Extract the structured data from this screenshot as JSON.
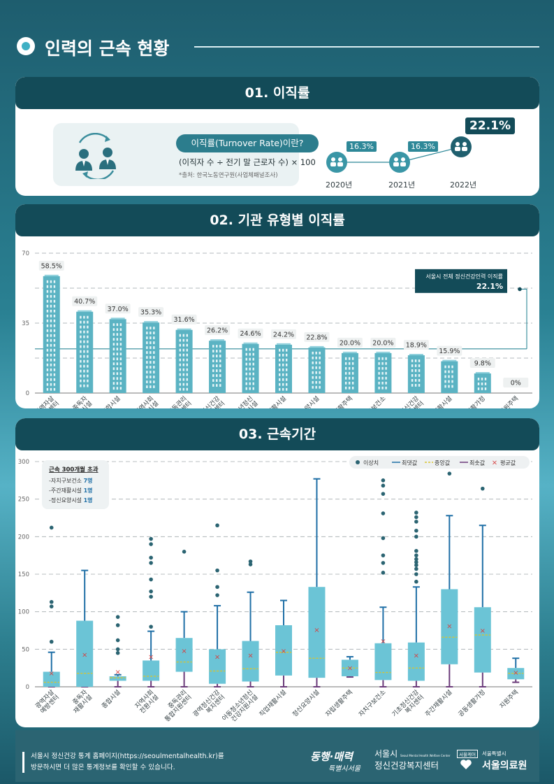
{
  "page": {
    "title": "인력의 근속 현황"
  },
  "section1": {
    "title": "01. 이직률",
    "definition": {
      "heading": "이직률(Turnover Rate)이란?",
      "formula": "(이직자 수 ÷ 전기 말 근로자 수) × 100",
      "source": "*출처: 한국노동연구원(사업체패널조사)"
    },
    "years": [
      {
        "label": "2020년",
        "value": "16.3%"
      },
      {
        "label": "2021년",
        "value": "16.3%"
      },
      {
        "label": "2022년",
        "value": "22.1%"
      }
    ]
  },
  "section2": {
    "title": "02. 기관 유형별 이직률",
    "callout_label": "서울시 전체 정신건강인력 이직률",
    "callout_value": "22.1%"
  },
  "section3": {
    "title": "03. 근속기간"
  },
  "chart_data": [
    {
      "type": "bar",
      "categories": [
        "광역자살예방센터",
        "중독자재활시설",
        "종합시설",
        "지역사회전환시설",
        "중독관리통합지원센터",
        "광역정신건강복지센터",
        "아동청소년정신건강지원시설",
        "직업재활시설",
        "정신요양시설",
        "자립생활주택",
        "자치구보건소",
        "기초정신건강복지센터",
        "주간재활시설",
        "공동생활가정",
        "지원주택"
      ],
      "values": [
        58.5,
        40.7,
        37.0,
        35.3,
        31.6,
        26.2,
        24.6,
        24.2,
        22.8,
        20.0,
        20.0,
        18.9,
        15.9,
        9.8,
        0
      ],
      "value_labels": [
        "58.5%",
        "40.7%",
        "37.0%",
        "35.3%",
        "31.6%",
        "26.2%",
        "24.6%",
        "24.2%",
        "22.8%",
        "20.0%",
        "20.0%",
        "18.9%",
        "15.9%",
        "9.8%",
        "0%"
      ],
      "cat_lines": [
        [
          "광역자살",
          "예방센터"
        ],
        [
          "중독자",
          "재활시설"
        ],
        [
          "종합시설"
        ],
        [
          "지역사회",
          "전환시설"
        ],
        [
          "중독관리",
          "통합지원센터"
        ],
        [
          "광역정신건강",
          "복지센터"
        ],
        [
          "아동청소년정신",
          "건강지원시설"
        ],
        [
          "직업재활시설"
        ],
        [
          "정신요양시설"
        ],
        [
          "자립생활주택"
        ],
        [
          "자치구보건소"
        ],
        [
          "기초정신건강",
          "복지센터"
        ],
        [
          "주간재활시설"
        ],
        [
          "공동생활가정"
        ],
        [
          "지원주택"
        ]
      ],
      "ylim": [
        0,
        70
      ],
      "yticks": [
        0,
        35,
        70
      ],
      "reference_line": 22.1,
      "grid": true
    },
    {
      "type": "box",
      "categories": [
        "광역자살예방센터",
        "중독자재활시설",
        "종합시설",
        "지역사회전환시설",
        "중독관리통합지원센터",
        "광역정신건강복지센터",
        "아동청소년정신건강지원시설",
        "직업재활시설",
        "정신요양시설",
        "자립생활주택",
        "자치구보건소",
        "기초정신건강복지센터",
        "주간재활시설",
        "공동생활가정",
        "지원주택"
      ],
      "cat_lines": [
        [
          "광역자살",
          "예방센터"
        ],
        [
          "중독자",
          "재활시설"
        ],
        [
          "종합시설"
        ],
        [
          "지역사회",
          "전환시설"
        ],
        [
          "중독관리",
          "통합지원센터"
        ],
        [
          "광역정신건강",
          "복지센터"
        ],
        [
          "아동청소년정신",
          "건강지원시설"
        ],
        [
          "직업재활시설"
        ],
        [
          "정신요양시설"
        ],
        [
          "자립생활주택"
        ],
        [
          "자치구보건소"
        ],
        [
          "기초정신건강",
          "복지센터"
        ],
        [
          "주간재활시설"
        ],
        [
          "공동생활가정"
        ],
        [
          "지원주택"
        ]
      ],
      "legend": [
        "이상치",
        "최댓값",
        "중앙값",
        "최솟값",
        "평균값"
      ],
      "ylim": [
        0,
        300
      ],
      "yticks": [
        0,
        50,
        100,
        150,
        200,
        250,
        300
      ],
      "boxes": [
        {
          "min": 0,
          "q1": 0,
          "median": 6,
          "q3": 20,
          "max": 46,
          "mean": 18,
          "outliers": [
            60,
            107,
            113,
            212
          ]
        },
        {
          "min": 0,
          "q1": 0,
          "median": 18,
          "q3": 88,
          "max": 155,
          "mean": 43,
          "outliers": []
        },
        {
          "min": 0,
          "q1": 8,
          "median": 12,
          "q3": 14,
          "max": 16,
          "mean": 20,
          "outliers": [
            45,
            50,
            62,
            82,
            93
          ]
        },
        {
          "min": 0,
          "q1": 8,
          "median": 14,
          "q3": 35,
          "max": 74,
          "mean": 40,
          "outliers": [
            80,
            120,
            127,
            143,
            165,
            172,
            190,
            197
          ]
        },
        {
          "min": 0,
          "q1": 20,
          "median": 33,
          "q3": 65,
          "max": 100,
          "mean": 48,
          "outliers": [
            180
          ]
        },
        {
          "min": 0,
          "q1": 4,
          "median": 21,
          "q3": 50,
          "max": 108,
          "mean": 40,
          "outliers": [
            122,
            133,
            155,
            215
          ]
        },
        {
          "min": 0,
          "q1": 7,
          "median": 24,
          "q3": 61,
          "max": 126,
          "mean": 42,
          "outliers": [
            163,
            167
          ]
        },
        {
          "min": 0,
          "q1": 15,
          "median": 46,
          "q3": 82,
          "max": 115,
          "mean": 48,
          "outliers": []
        },
        {
          "min": 0,
          "q1": 12,
          "median": 38,
          "q3": 133,
          "max": 277,
          "mean": 76,
          "outliers": []
        },
        {
          "min": 13,
          "q1": 14,
          "median": 25,
          "q3": 36,
          "max": 40,
          "mean": 25,
          "outliers": []
        },
        {
          "min": 0,
          "q1": 9,
          "median": 19,
          "q3": 58,
          "max": 106,
          "mean": 61,
          "outliers": [
            152,
            165,
            175,
            198,
            231,
            257,
            268,
            275
          ]
        },
        {
          "min": 0,
          "q1": 8,
          "median": 25,
          "q3": 59,
          "max": 133,
          "mean": 42,
          "outliers": [
            140,
            150,
            157,
            162,
            166,
            170,
            175,
            181,
            200,
            208,
            220,
            226,
            232
          ]
        },
        {
          "min": 0,
          "q1": 30,
          "median": 66,
          "q3": 130,
          "max": 228,
          "mean": 81,
          "outliers": [
            284
          ]
        },
        {
          "min": 0,
          "q1": 19,
          "median": 69,
          "q3": 106,
          "max": 215,
          "mean": 75,
          "outliers": [
            264
          ]
        },
        {
          "min": 6,
          "q1": 10,
          "median": 18,
          "q3": 25,
          "max": 38,
          "mean": 19,
          "outliers": []
        }
      ],
      "note": {
        "title": "근속 300개월 초과",
        "items": [
          {
            "label": "-자치구보건소",
            "value": "7명"
          },
          {
            "label": "-주간재활시설",
            "value": "1명"
          },
          {
            "label": "-정신요양시설",
            "value": "1명"
          }
        ]
      }
    }
  ],
  "colors": {
    "dark": "#134b58",
    "bar": "#5bb3c3",
    "box": "#6bc4d6",
    "whisker": "#1f6fa6",
    "min": "#6b3b7a",
    "median": "#d8c431",
    "mean": "#d64040",
    "outlier": "#2b6472"
  },
  "footer": {
    "line1": "서울시 정신건강 통계 홈페이지(https://seoulmentalhealth.kr)를",
    "line2": "방문하시면 더 많은 통계정보를 확인할 수 있습니다.",
    "logo1_top": "동행·매력",
    "logo1_bottom": "특별시서울",
    "logo2_top": "서울시",
    "logo2_sub": "Seoul Mental Health Welfare Center",
    "logo2_bottom": "정신건강복지센터",
    "logo3_tag": "서울케어",
    "logo3_top": "서울특별시",
    "logo3_bottom": "서울의료원"
  }
}
